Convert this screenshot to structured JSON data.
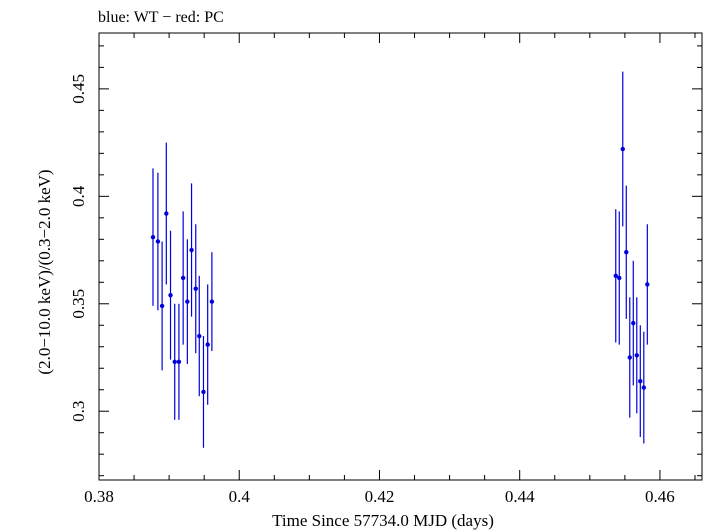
{
  "chart_data": {
    "type": "scatter",
    "title": "blue: WT − red: PC",
    "xlabel": "Time Since 57734.0 MJD (days)",
    "ylabel": "(2.0−10.0 keV)/(0.3−2.0 keV)",
    "xlim": [
      0.38,
      0.466
    ],
    "ylim": [
      0.268,
      0.476
    ],
    "x_ticks": [
      {
        "value": 0.38,
        "label": "0.38"
      },
      {
        "value": 0.4,
        "label": "0.4"
      },
      {
        "value": 0.42,
        "label": "0.42"
      },
      {
        "value": 0.44,
        "label": "0.44"
      },
      {
        "value": 0.46,
        "label": "0.46"
      }
    ],
    "y_ticks": [
      {
        "value": 0.3,
        "label": "0.3"
      },
      {
        "value": 0.35,
        "label": "0.35"
      },
      {
        "value": 0.4,
        "label": "0.4"
      },
      {
        "value": 0.45,
        "label": "0.45"
      }
    ],
    "grid": false,
    "color": "#0000dd",
    "series": [
      {
        "points": [
          {
            "x": 0.3877,
            "y": 0.381,
            "err": 0.032
          },
          {
            "x": 0.3884,
            "y": 0.379,
            "err": 0.032
          },
          {
            "x": 0.389,
            "y": 0.349,
            "err": 0.03
          },
          {
            "x": 0.3896,
            "y": 0.392,
            "err": 0.033
          },
          {
            "x": 0.3902,
            "y": 0.354,
            "err": 0.03
          },
          {
            "x": 0.3908,
            "y": 0.323,
            "err": 0.027
          },
          {
            "x": 0.3914,
            "y": 0.323,
            "err": 0.027
          },
          {
            "x": 0.392,
            "y": 0.362,
            "err": 0.031
          },
          {
            "x": 0.3926,
            "y": 0.351,
            "err": 0.029
          },
          {
            "x": 0.3932,
            "y": 0.375,
            "err": 0.031
          },
          {
            "x": 0.3938,
            "y": 0.357,
            "err": 0.03
          },
          {
            "x": 0.3943,
            "y": 0.335,
            "err": 0.028
          },
          {
            "x": 0.3949,
            "y": 0.309,
            "err": 0.026
          },
          {
            "x": 0.3955,
            "y": 0.331,
            "err": 0.028
          },
          {
            "x": 0.3961,
            "y": 0.351,
            "err": 0.023
          },
          {
            "x": 0.4537,
            "y": 0.363,
            "err": 0.031
          },
          {
            "x": 0.4542,
            "y": 0.362,
            "err": 0.031
          },
          {
            "x": 0.4547,
            "y": 0.422,
            "err": 0.036
          },
          {
            "x": 0.4552,
            "y": 0.374,
            "err": 0.031
          },
          {
            "x": 0.4557,
            "y": 0.325,
            "err": 0.028
          },
          {
            "x": 0.4562,
            "y": 0.341,
            "err": 0.029
          },
          {
            "x": 0.4567,
            "y": 0.326,
            "err": 0.027
          },
          {
            "x": 0.4572,
            "y": 0.314,
            "err": 0.026
          },
          {
            "x": 0.4577,
            "y": 0.311,
            "err": 0.026
          },
          {
            "x": 0.4582,
            "y": 0.359,
            "err": 0.028
          }
        ]
      }
    ]
  }
}
